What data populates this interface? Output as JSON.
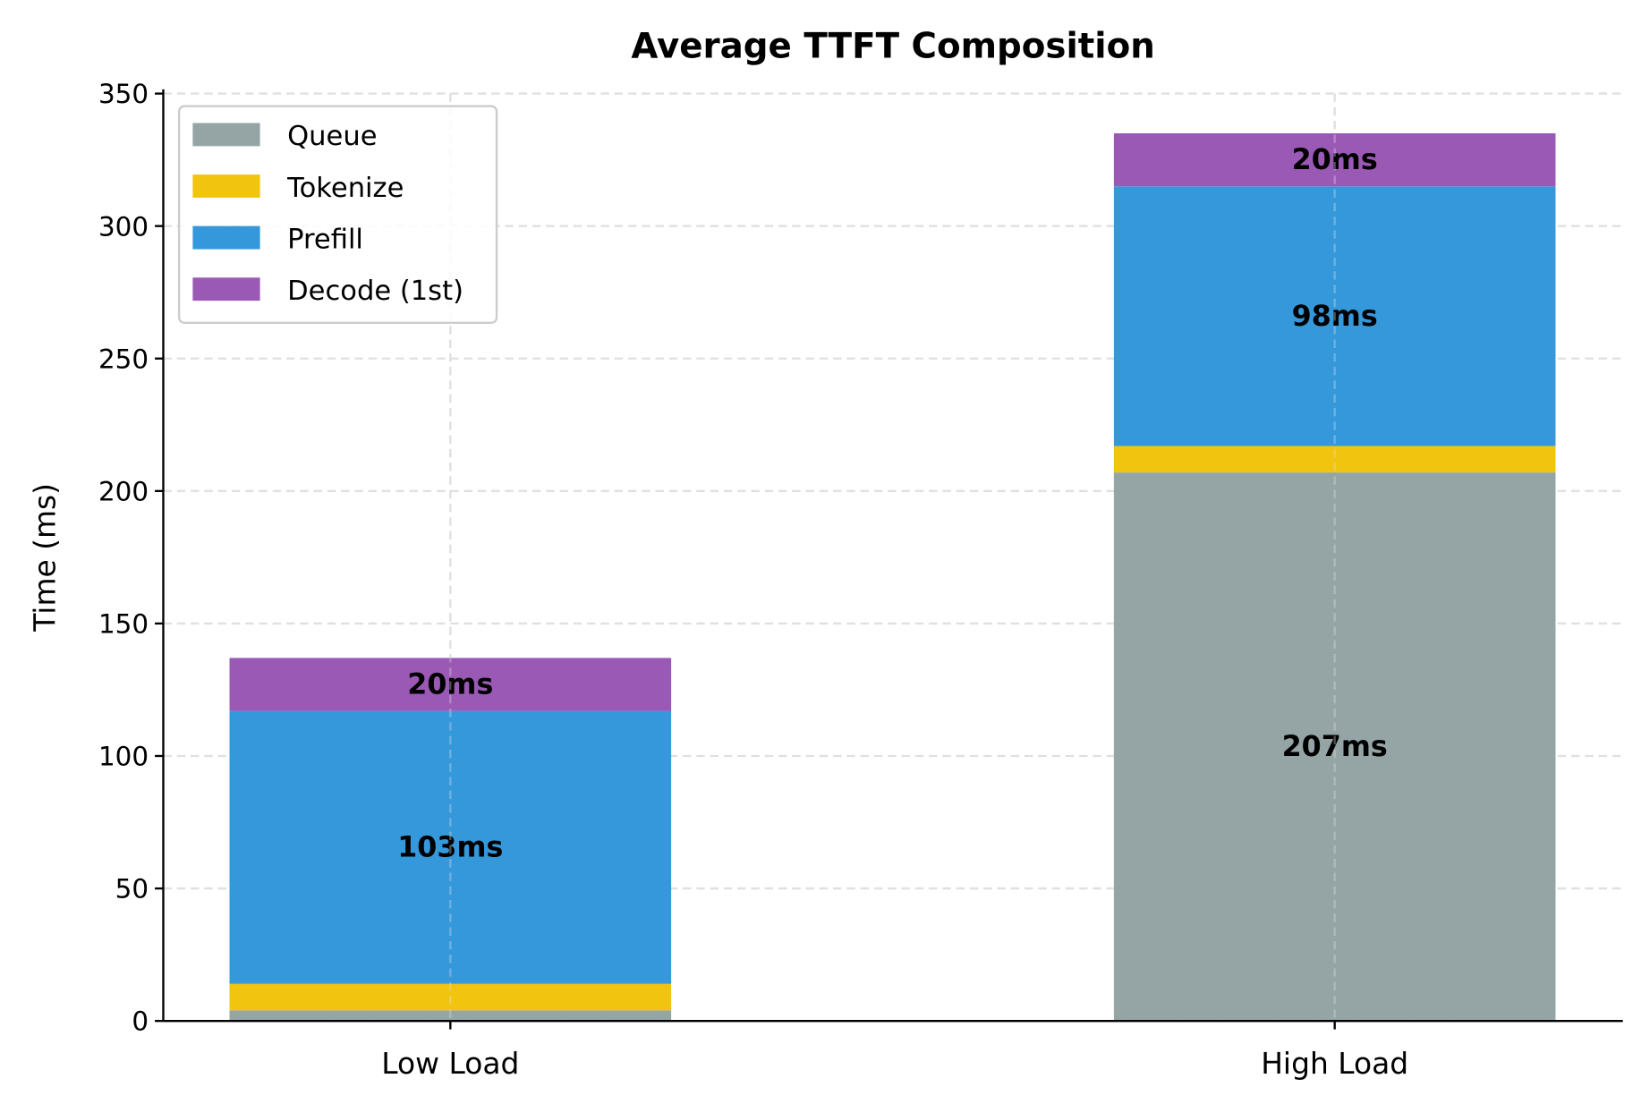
{
  "chart_data": {
    "type": "bar",
    "stacked": true,
    "title": "Average TTFT Composition",
    "xlabel": "",
    "ylabel": "Time (ms)",
    "ylim": [
      0,
      350
    ],
    "yticks": [
      0,
      50,
      100,
      150,
      200,
      250,
      300,
      350
    ],
    "grid": true,
    "legend_position": "top-left",
    "categories": [
      "Low Load",
      "High Load"
    ],
    "series": [
      {
        "name": "Queue",
        "color": "#95a5a6",
        "values": [
          4,
          207
        ],
        "labels": [
          "",
          "207ms"
        ]
      },
      {
        "name": "Tokenize",
        "color": "#f1c40f",
        "values": [
          10,
          10
        ],
        "labels": [
          "",
          ""
        ]
      },
      {
        "name": "Prefill",
        "color": "#3498db",
        "values": [
          103,
          98
        ],
        "labels": [
          "103ms",
          "98ms"
        ]
      },
      {
        "name": "Decode (1st)",
        "color": "#9b59b6",
        "values": [
          20,
          20
        ],
        "labels": [
          "20ms",
          "20ms"
        ]
      }
    ]
  }
}
